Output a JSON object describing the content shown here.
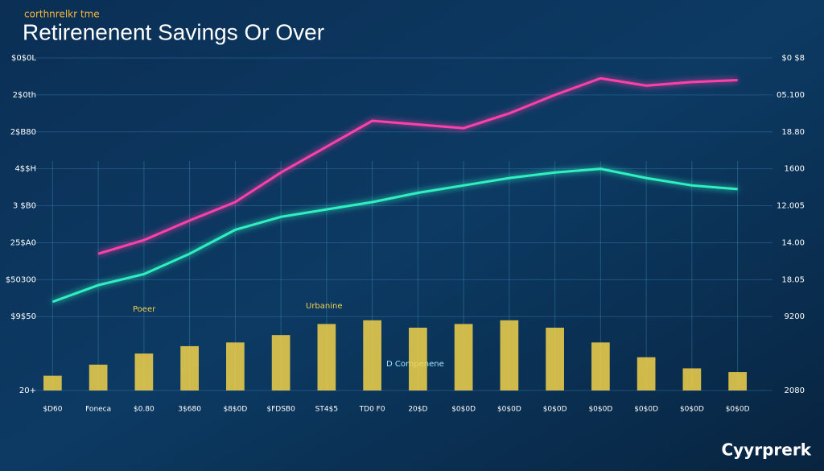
{
  "chart_data": {
    "type": "line",
    "subtitle": "corthnrelkr tme",
    "title": "Retirenenent Savings Or Over",
    "categories": [
      "$D60",
      "Foneca",
      "$0.80",
      "3$680",
      "$8$0D",
      "$FDSB0",
      "ST4$5",
      "TD0 F0",
      "20$D",
      "$0$0D",
      "$0$0D",
      "$0$0D",
      "$0$0D",
      "$0$0D",
      "$0$0D",
      "$0$0D"
    ],
    "ylim": [
      0,
      9
    ],
    "yticks": [
      0,
      2,
      3,
      4,
      5,
      6,
      7,
      8,
      9
    ],
    "y_labels": [
      "20+",
      "$9$50",
      "$50300",
      "25$A0",
      "3 $B0",
      "4$$H",
      "2$B80",
      "2$0th",
      "$0$0L"
    ],
    "y2_labels": [
      "2080",
      "9200",
      "18.05",
      "14.00",
      "12.005",
      "1600",
      "18.80",
      "05.100",
      "$0 $8"
    ],
    "grid": true,
    "series": [
      {
        "type": "bar",
        "color": "#f2d24a",
        "values": [
          0.4,
          0.7,
          1.0,
          1.2,
          1.3,
          1.5,
          1.8,
          1.9,
          1.7,
          1.8,
          1.9,
          1.7,
          1.3,
          0.9,
          0.6,
          0.5
        ]
      },
      {
        "type": "line",
        "color": "#2ef0c0",
        "values": [
          2.4,
          2.85,
          3.15,
          3.7,
          4.35,
          4.7,
          4.9,
          5.1,
          5.35,
          5.55,
          5.75,
          5.9,
          6.0,
          5.75,
          5.55,
          5.45
        ]
      },
      {
        "type": "line",
        "color": "#ff3fa8",
        "values": [
          null,
          3.7,
          4.07,
          4.6,
          5.1,
          5.9,
          6.6,
          7.3,
          7.2,
          7.1,
          7.5,
          8.0,
          8.45,
          8.25,
          8.35,
          8.4
        ]
      }
    ],
    "annotations": [
      "Urbanine",
      "D Cornpenene",
      "Poeer"
    ],
    "brand": "Cyyrprerk"
  }
}
